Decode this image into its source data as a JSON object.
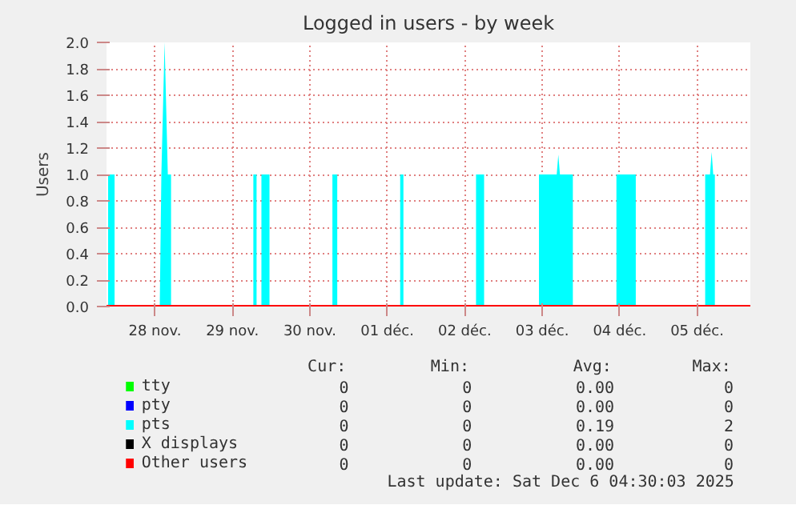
{
  "chart_data": {
    "type": "area",
    "title": "Logged in users - by week",
    "ylabel": "Users",
    "xlim": [
      "2025-11-27T21:00",
      "2025-12-06T04:30"
    ],
    "xticks": [
      {
        "value": "2025-11-28T12:00",
        "label": "28 nov."
      },
      {
        "value": "2025-11-29T12:00",
        "label": "29 nov."
      },
      {
        "value": "2025-11-30T12:00",
        "label": "30 nov."
      },
      {
        "value": "2025-12-01T12:00",
        "label": "01 déc."
      },
      {
        "value": "2025-12-02T12:00",
        "label": "02 déc."
      },
      {
        "value": "2025-12-03T12:00",
        "label": "03 déc."
      },
      {
        "value": "2025-12-04T12:00",
        "label": "04 déc."
      },
      {
        "value": "2025-12-05T12:00",
        "label": "05 déc."
      }
    ],
    "ylim": [
      0,
      2
    ],
    "yticks": [
      {
        "value": 0,
        "label": "0.0"
      },
      {
        "value": 0.2,
        "label": "0.2"
      },
      {
        "value": 0.4,
        "label": "0.4"
      },
      {
        "value": 0.6,
        "label": "0.6"
      },
      {
        "value": 0.8,
        "label": "0.8"
      },
      {
        "value": 1,
        "label": "1.0"
      },
      {
        "value": 1.2,
        "label": "1.2"
      },
      {
        "value": 1.4,
        "label": "1.4"
      },
      {
        "value": 1.6,
        "label": "1.6"
      },
      {
        "value": 1.8,
        "label": "1.8"
      },
      {
        "value": 2,
        "label": "2.0"
      }
    ],
    "grid": true,
    "legend": "bottom",
    "series": [
      {
        "name": "tty",
        "type": "line",
        "color": "#00ff00"
      },
      {
        "name": "pty",
        "type": "line",
        "color": "#0000ff"
      },
      {
        "name": "pts",
        "color": "#00ffff",
        "x": [
          "2025-11-27T21:30",
          "2025-11-27T21:30",
          "2025-11-27T23:30",
          "2025-11-27T23:30",
          "2025-11-28T13:30",
          "2025-11-28T14:00",
          "2025-11-28T15:00",
          "2025-11-28T16:00",
          "2025-11-28T17:00",
          "2025-11-28T17:00",
          "2025-11-29T18:30",
          "2025-11-29T18:30",
          "2025-11-29T19:30",
          "2025-11-29T19:30",
          "2025-11-29T21:00",
          "2025-11-29T21:00",
          "2025-11-29T23:30",
          "2025-11-29T23:30",
          "2025-11-30T19:00",
          "2025-11-30T19:00",
          "2025-11-30T20:30",
          "2025-11-30T20:30",
          "2025-12-01T16:00",
          "2025-12-01T16:00",
          "2025-12-01T17:00",
          "2025-12-01T17:00",
          "2025-12-02T15:30",
          "2025-12-02T15:30",
          "2025-12-02T18:00",
          "2025-12-02T18:00",
          "2025-12-03T11:00",
          "2025-12-03T11:00",
          "2025-12-03T16:30",
          "2025-12-03T17:00",
          "2025-12-03T17:30",
          "2025-12-03T21:30",
          "2025-12-03T21:30",
          "2025-12-04T11:00",
          "2025-12-04T11:00",
          "2025-12-04T17:00",
          "2025-12-04T17:00",
          "2025-12-05T14:30",
          "2025-12-05T14:30",
          "2025-12-05T16:00",
          "2025-12-05T16:30",
          "2025-12-05T17:00",
          "2025-12-05T17:30",
          "2025-12-05T17:30"
        ],
        "values": [
          0,
          1,
          1,
          0,
          0,
          1,
          2,
          1,
          1,
          0,
          0,
          1,
          1,
          0,
          0,
          1,
          1,
          0,
          0,
          1,
          1,
          0,
          0,
          1,
          1,
          0,
          0,
          1,
          1,
          0,
          0,
          1,
          1,
          1.15,
          1,
          1,
          0,
          0,
          1,
          1,
          0,
          0,
          1,
          1,
          1.17,
          1,
          1,
          0
        ]
      },
      {
        "name": "X displays",
        "type": "line",
        "color": "#000000"
      },
      {
        "name": "Other users",
        "type": "line",
        "color": "#ff0000",
        "x": [
          "2025-11-27T21:00",
          "2025-12-06T04:30"
        ],
        "values": [
          0,
          0
        ]
      }
    ],
    "annotations": [
      "Cur:",
      "Min:",
      "Avg:",
      "Max:",
      "0",
      "0",
      "0.00",
      "0",
      "0",
      "0",
      "0.00",
      "0",
      "0",
      "0",
      "0.19",
      "2",
      "0",
      "0",
      "0.00",
      "0",
      "0",
      "0",
      "0.00",
      "0",
      "Last update: Sat Dec  6 04:30:03 2025"
    ]
  }
}
